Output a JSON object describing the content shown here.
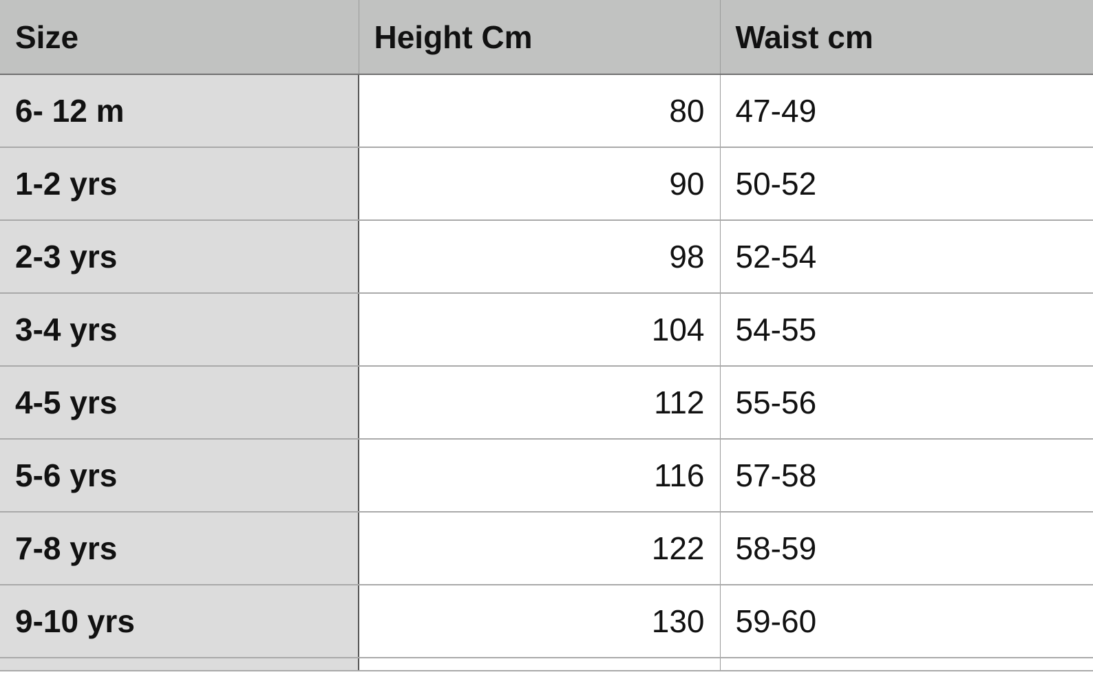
{
  "columns": [
    "Size",
    "Height Cm",
    "Waist cm"
  ],
  "rows": [
    {
      "size": "6- 12 m",
      "height": "80",
      "waist": "47-49"
    },
    {
      "size": "1-2 yrs",
      "height": "90",
      "waist": "50-52"
    },
    {
      "size": "2-3 yrs",
      "height": "98",
      "waist": "52-54"
    },
    {
      "size": "3-4 yrs",
      "height": "104",
      "waist": "54-55"
    },
    {
      "size": "4-5 yrs",
      "height": "112",
      "waist": "55-56"
    },
    {
      "size": "5-6 yrs",
      "height": "116",
      "waist": "57-58"
    },
    {
      "size": "7-8 yrs",
      "height": "122",
      "waist": "58-59"
    },
    {
      "size": "9-10 yrs",
      "height": "130",
      "waist": "59-60"
    }
  ],
  "colors": {
    "header_bg": "#c1c2c1",
    "size_col_bg": "#dcdcdc",
    "cell_bg": "#ffffff"
  }
}
